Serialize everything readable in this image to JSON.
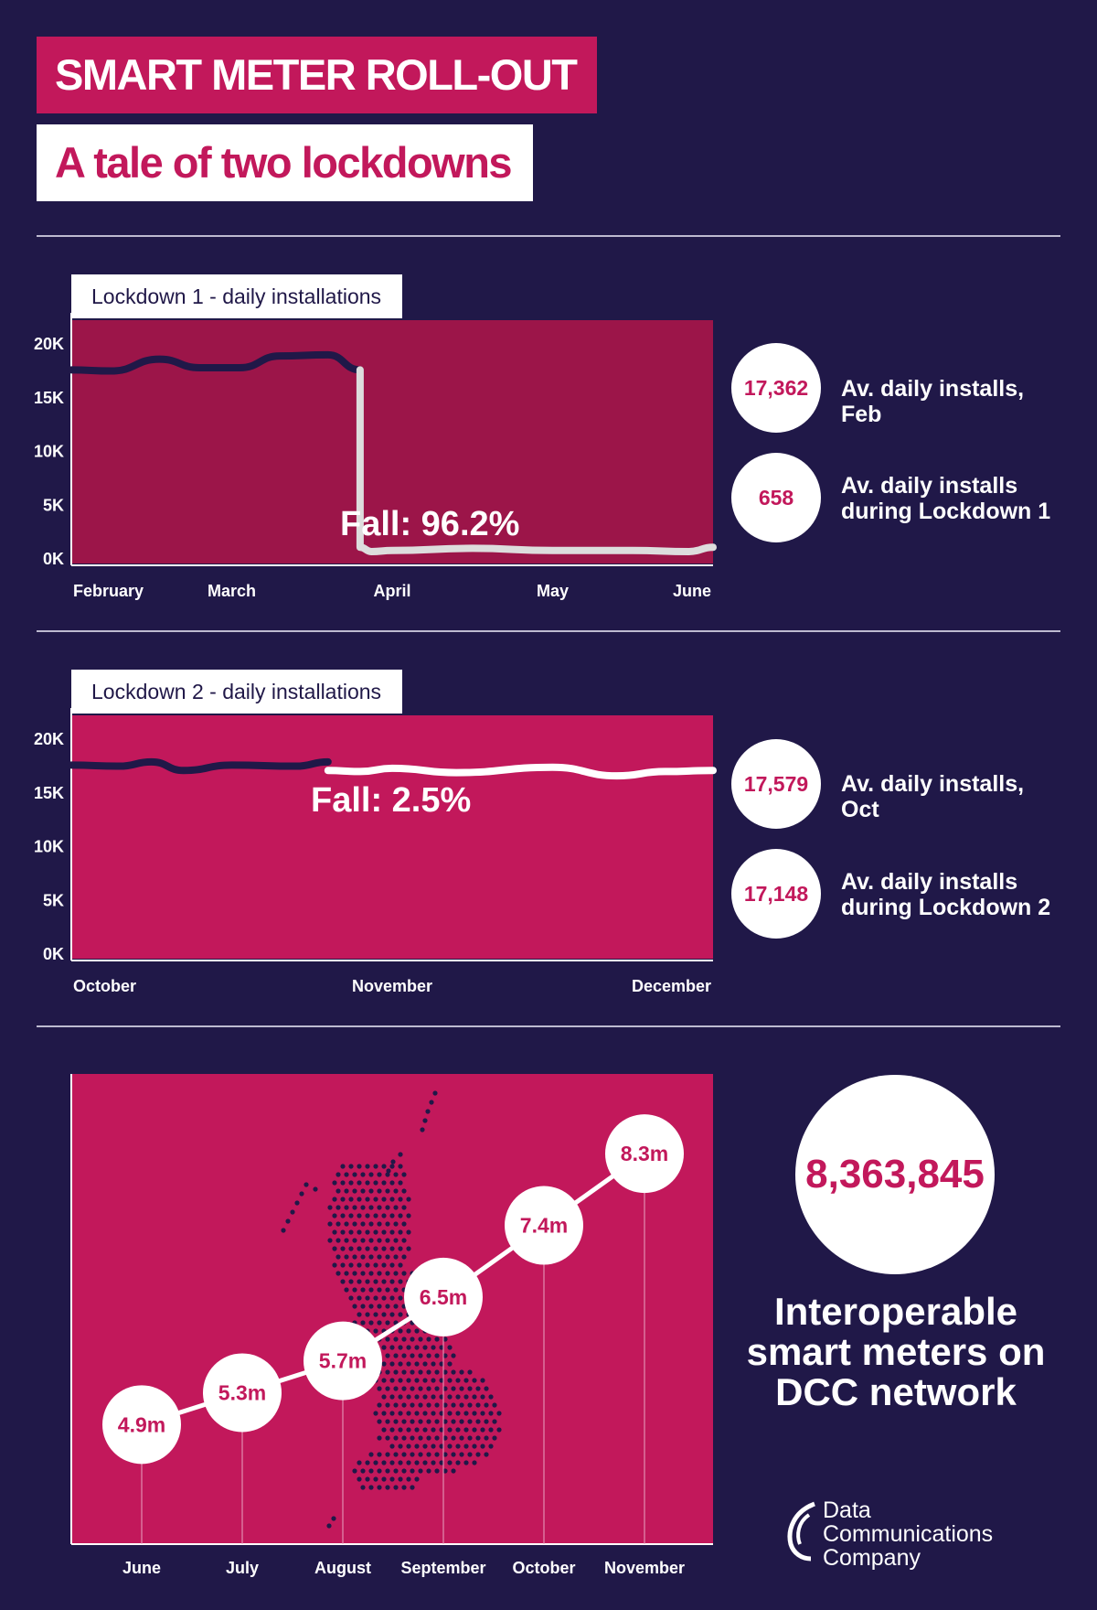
{
  "header": {
    "title": "SMART METER ROLL-OUT",
    "subtitle": "A tale of two lockdowns"
  },
  "colors": {
    "background": "#201848",
    "accent": "#c2185b",
    "panel1_fill": "#9c1549",
    "line_dark": "#201848",
    "line_light": "#ffffff"
  },
  "panel1": {
    "label": "Lockdown 1 - daily installations",
    "fall_text": "Fall: 96.2%",
    "stats": [
      {
        "value": "17,362",
        "label": "Av. daily installs, Feb"
      },
      {
        "value": "658",
        "label": "Av. daily installs during Lockdown 1"
      }
    ]
  },
  "panel2": {
    "label": "Lockdown 2 - daily installations",
    "fall_text": "Fall: 2.5%",
    "stats": [
      {
        "value": "17,579",
        "label": "Av. daily installs, Oct"
      },
      {
        "value": "17,148",
        "label": "Av. daily installs during Lockdown 2"
      }
    ]
  },
  "panel3": {
    "big_value": "8,363,845",
    "big_label": "Interoperable smart meters on DCC network",
    "logo_lines": [
      "Data",
      "Communications",
      "Company"
    ],
    "map_icon": "uk-map-dots-icon",
    "logo_icon": "dcc-logo-icon"
  },
  "chart_data": [
    {
      "type": "line",
      "title": "Lockdown 1 - daily installations",
      "x_tick_labels": [
        "February",
        "March",
        "April",
        "May",
        "June"
      ],
      "y_tick_labels": [
        "20K",
        "15K",
        "10K",
        "5K",
        "0K"
      ],
      "ylim": [
        0,
        20000
      ],
      "xlim": [
        0,
        4
      ],
      "series": [
        {
          "x": [
            0,
            0.25,
            0.55,
            0.8,
            1.05,
            1.3,
            1.6,
            1.8
          ],
          "values": [
            17500,
            17400,
            18500,
            17700,
            17700,
            18800,
            18900,
            17500
          ]
        },
        {
          "x": [
            1.8,
            1.8,
            1.87,
            2.0,
            2.5,
            3.0,
            3.5,
            3.85,
            4.0
          ],
          "values": [
            17500,
            1000,
            600,
            700,
            900,
            700,
            700,
            600,
            1000
          ]
        }
      ],
      "grid": false
    },
    {
      "type": "line",
      "title": "Lockdown 2 - daily installations",
      "x_tick_labels": [
        "October",
        "November",
        "December"
      ],
      "y_tick_labels": [
        "20K",
        "15K",
        "10K",
        "5K",
        "0K"
      ],
      "ylim": [
        0,
        20000
      ],
      "xlim": [
        0,
        2
      ],
      "series": [
        {
          "x": [
            0,
            0.15,
            0.25,
            0.35,
            0.5,
            0.7,
            0.8
          ],
          "values": [
            17500,
            17400,
            17800,
            17000,
            17500,
            17400,
            17800
          ]
        },
        {
          "x": [
            0.8,
            0.9,
            1.0,
            1.2,
            1.5,
            1.7,
            1.85,
            2.0
          ],
          "values": [
            17000,
            16900,
            17200,
            16800,
            17300,
            16500,
            16900,
            17000
          ]
        }
      ],
      "grid": false
    },
    {
      "type": "line",
      "categories": [
        "June",
        "July",
        "August",
        "September",
        "October",
        "November"
      ],
      "values": [
        4.9,
        5.3,
        5.7,
        6.5,
        7.4,
        8.3
      ],
      "data_labels": [
        "4.9m",
        "5.3m",
        "5.7m",
        "6.5m",
        "7.4m",
        "8.3m"
      ],
      "ylim": [
        3.4,
        9.3
      ],
      "grid": false
    }
  ]
}
